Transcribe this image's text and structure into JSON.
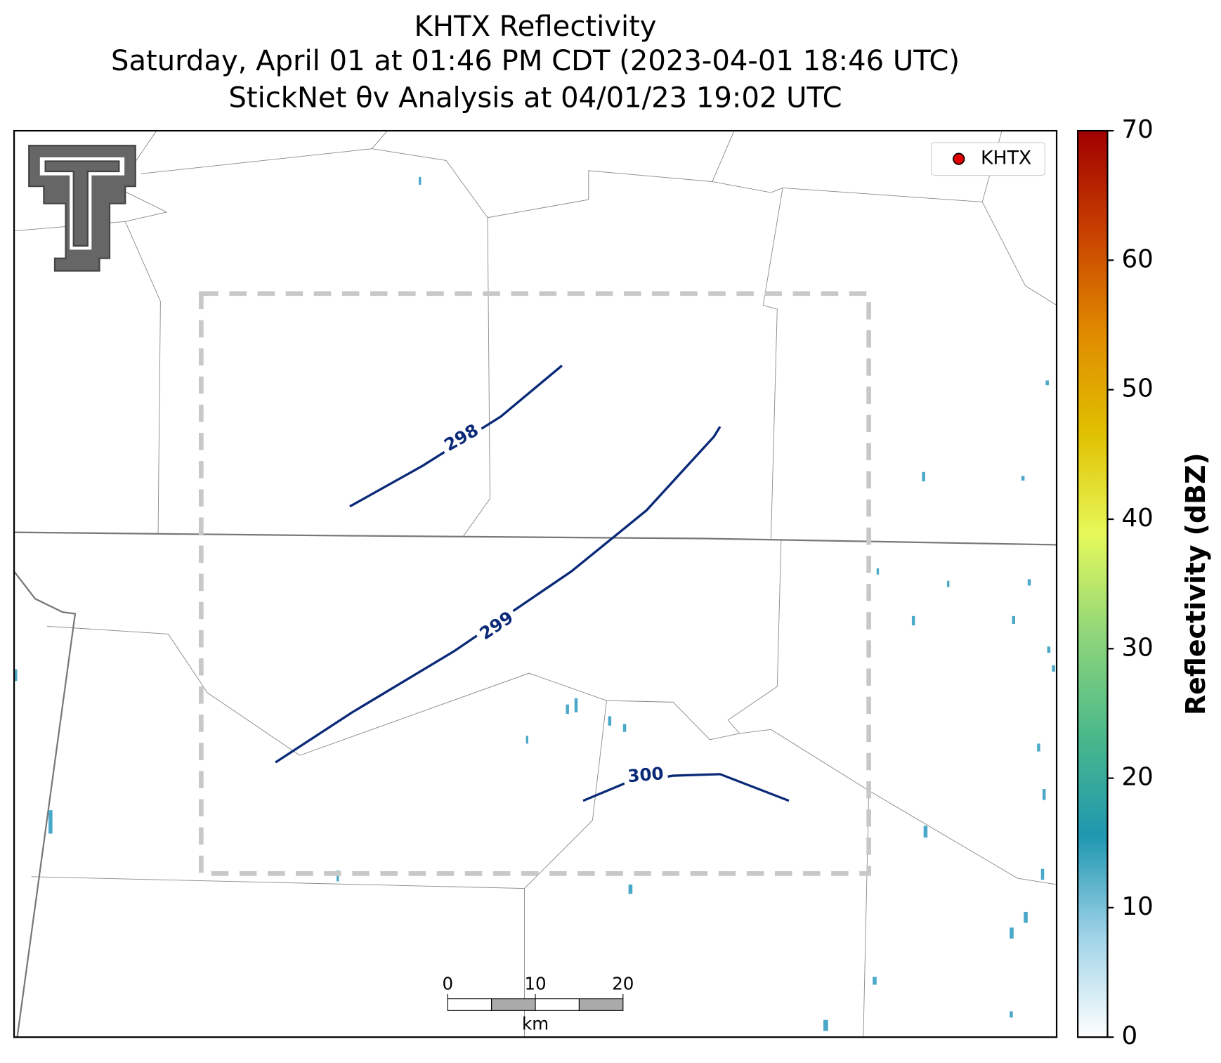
{
  "chart_data": {
    "type": "map",
    "title": "KHTX Reflectivity",
    "subtitle": "Saturday, April 01 at 01:46 PM CDT (2023-04-01 18:46 UTC)",
    "subtitle2": "StickNet θv Analysis at 04/01/23 19:02 UTC",
    "legend": [
      "KHTX"
    ],
    "legend_color": "#e00000",
    "legend_position": "upper right",
    "contour_color": "#0a2a78",
    "contours": [
      298,
      299,
      300
    ],
    "colorbar": {
      "label": "Reflectivity (dBZ)",
      "lim": [
        0,
        70
      ],
      "ticks": [
        0,
        10,
        20,
        30,
        40,
        50,
        60,
        70
      ],
      "colors": [
        "#ffffff",
        "#9fd3e8",
        "#1f97b0",
        "#4bb98a",
        "#8fd67a",
        "#e6f95a",
        "#e0c000",
        "#e08a00",
        "#c84000",
        "#a00000"
      ]
    },
    "scale_bar": {
      "ticks": [
        0,
        10,
        20
      ],
      "unit": "km"
    }
  }
}
